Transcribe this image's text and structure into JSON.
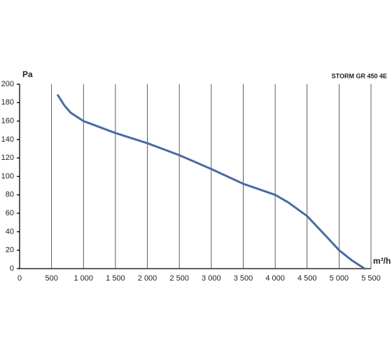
{
  "chart_data": {
    "type": "line",
    "title": "STORM GR 450 4E",
    "y_label": "Pa",
    "x_label": "m³/h",
    "x": [
      600,
      700,
      800,
      1000,
      1500,
      2000,
      2500,
      3000,
      3500,
      4000,
      4200,
      4500,
      4800,
      5000,
      5200,
      5400
    ],
    "series": [
      {
        "name": "STORM GR 450 4E",
        "color": "#4a6aa5",
        "values": [
          188,
          177,
          169,
          160,
          147,
          136,
          123,
          108,
          92,
          80,
          72,
          57,
          35,
          20,
          9,
          0
        ]
      }
    ],
    "xlim": [
      0,
      5500
    ],
    "xticks": [
      0,
      500,
      {
        "value": 1000,
        "label": "1 000"
      },
      {
        "value": 1500,
        "label": "1 500"
      },
      {
        "value": 2000,
        "label": "2 000"
      },
      {
        "value": 2500,
        "label": "2 500"
      },
      {
        "value": 3000,
        "label": "3 000"
      },
      {
        "value": 3500,
        "label": "3 500"
      },
      {
        "value": 4000,
        "label": "4 000"
      },
      {
        "value": 4500,
        "label": "4 500"
      },
      {
        "value": 5000,
        "label": "5 000"
      },
      {
        "value": 5500,
        "label": "5 500"
      }
    ],
    "ylim": [
      0,
      200
    ],
    "yticks": [
      0,
      20,
      40,
      60,
      80,
      100,
      120,
      140,
      160,
      180,
      200
    ],
    "grid": true
  }
}
